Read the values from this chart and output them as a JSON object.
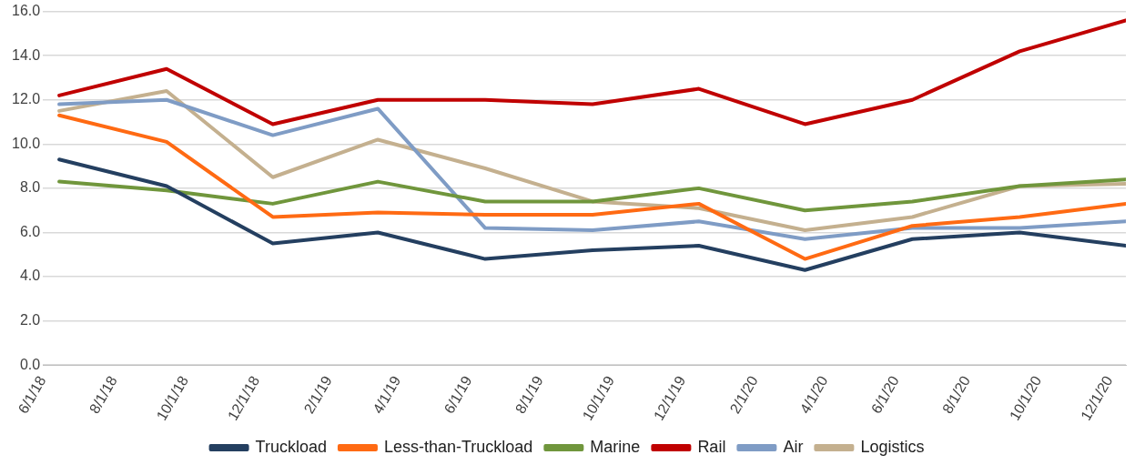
{
  "chart_data": {
    "type": "line",
    "x": [
      "2018-06-15",
      "2018-09-15",
      "2018-12-15",
      "2019-03-15",
      "2019-06-15",
      "2019-09-15",
      "2019-12-15",
      "2020-03-15",
      "2020-06-15",
      "2020-09-15",
      "2020-12-15"
    ],
    "series": [
      {
        "name": "Truckload",
        "color": "#243f60",
        "values": [
          9.3,
          8.1,
          5.5,
          6.0,
          4.8,
          5.2,
          5.4,
          4.3,
          5.7,
          6.0,
          5.4
        ]
      },
      {
        "name": "Less-than-Truckload",
        "color": "#ff6a13",
        "values": [
          11.3,
          10.1,
          6.7,
          6.9,
          6.8,
          6.8,
          7.3,
          4.8,
          6.3,
          6.7,
          7.3
        ]
      },
      {
        "name": "Marine",
        "color": "#70963c",
        "values": [
          8.3,
          7.9,
          7.3,
          8.3,
          7.4,
          7.4,
          8.0,
          7.0,
          7.4,
          8.1,
          8.4
        ]
      },
      {
        "name": "Rail",
        "color": "#c00000",
        "values": [
          12.2,
          13.4,
          10.9,
          12.0,
          12.0,
          11.8,
          12.5,
          10.9,
          12.0,
          14.2,
          15.6
        ]
      },
      {
        "name": "Air",
        "color": "#7f9cc5",
        "values": [
          11.8,
          12.0,
          10.4,
          11.6,
          6.2,
          6.1,
          6.5,
          5.7,
          6.2,
          6.2,
          6.5
        ]
      },
      {
        "name": "Logistics",
        "color": "#c4b08f",
        "values": [
          11.5,
          12.4,
          8.5,
          10.2,
          8.9,
          7.4,
          7.1,
          6.1,
          6.7,
          8.1,
          8.2
        ]
      }
    ],
    "xlim": [
      "2018-06-01",
      "2020-12-15"
    ],
    "xticks": [
      {
        "value": "2018-06-01",
        "label": "6/1/18"
      },
      {
        "value": "2018-08-01",
        "label": "8/1/18"
      },
      {
        "value": "2018-10-01",
        "label": "10/1/18"
      },
      {
        "value": "2018-12-01",
        "label": "12/1/18"
      },
      {
        "value": "2019-02-01",
        "label": "2/1/19"
      },
      {
        "value": "2019-04-01",
        "label": "4/1/19"
      },
      {
        "value": "2019-06-01",
        "label": "6/1/19"
      },
      {
        "value": "2019-08-01",
        "label": "8/1/19"
      },
      {
        "value": "2019-10-01",
        "label": "10/1/19"
      },
      {
        "value": "2019-12-01",
        "label": "12/1/19"
      },
      {
        "value": "2020-02-01",
        "label": "2/1/20"
      },
      {
        "value": "2020-04-01",
        "label": "4/1/20"
      },
      {
        "value": "2020-06-01",
        "label": "6/1/20"
      },
      {
        "value": "2020-08-01",
        "label": "8/1/20"
      },
      {
        "value": "2020-10-01",
        "label": "10/1/20"
      },
      {
        "value": "2020-12-01",
        "label": "12/1/20"
      }
    ],
    "ylim": [
      0,
      16
    ],
    "yticks": [
      {
        "value": 0,
        "label": "0.0"
      },
      {
        "value": 2,
        "label": "2.0"
      },
      {
        "value": 4,
        "label": "4.0"
      },
      {
        "value": 6,
        "label": "6.0"
      },
      {
        "value": 8,
        "label": "8.0"
      },
      {
        "value": 10,
        "label": "10.0"
      },
      {
        "value": 12,
        "label": "12.0"
      },
      {
        "value": 14,
        "label": "14.0"
      },
      {
        "value": 16,
        "label": "16.0"
      }
    ],
    "grid": "y",
    "legend": "bottom",
    "marker": "none",
    "line_style": "solid"
  }
}
